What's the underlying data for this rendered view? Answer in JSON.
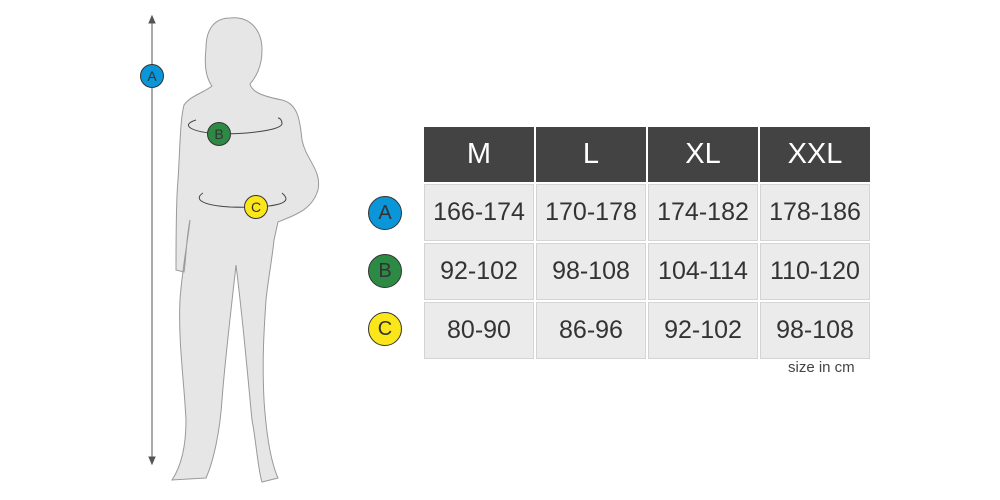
{
  "sizes": [
    "M",
    "L",
    "XL",
    "XXL"
  ],
  "rows": [
    {
      "label": "A",
      "color": "#0a96d8",
      "values": [
        "166-174",
        "170-178",
        "174-182",
        "178-186"
      ]
    },
    {
      "label": "B",
      "color": "#2d8a45",
      "values": [
        "92-102",
        "98-108",
        "104-114",
        "110-120"
      ]
    },
    {
      "label": "C",
      "color": "#fbe61a",
      "values": [
        "80-90",
        "86-96",
        "92-102",
        "98-108"
      ]
    }
  ],
  "unit_note": "size in cm"
}
